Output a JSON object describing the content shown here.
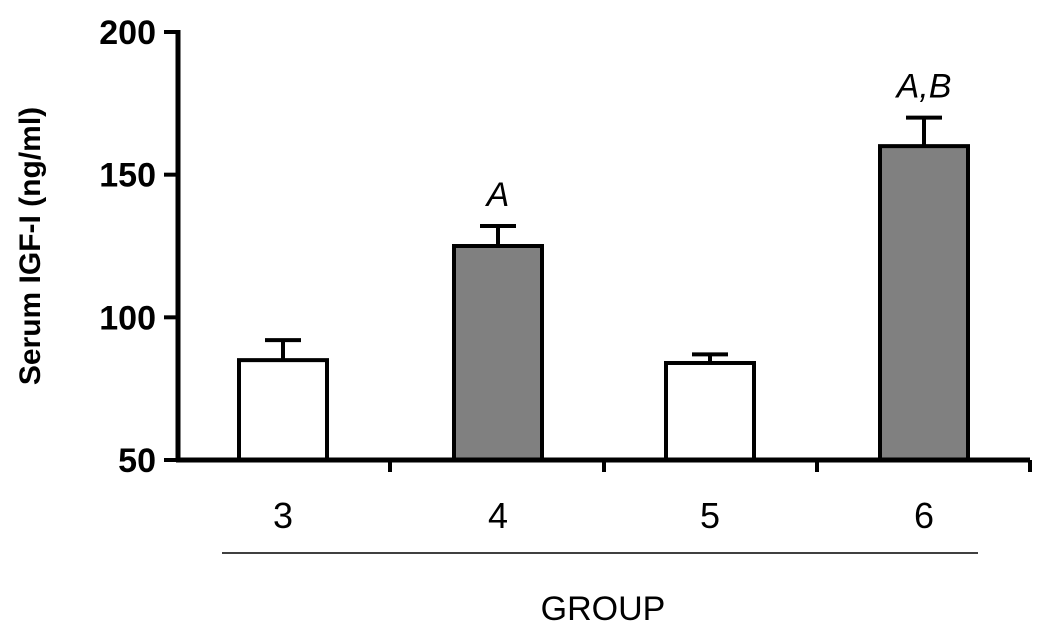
{
  "chart_data": {
    "type": "bar",
    "title": "",
    "ylabel": "Serum IGF-I (ng/ml)",
    "xlabel": "GROUP",
    "ylim": [
      50,
      200
    ],
    "yticks": [
      50,
      100,
      150,
      200
    ],
    "categories": [
      "3",
      "4",
      "5",
      "6"
    ],
    "values": [
      85,
      125,
      84,
      160
    ],
    "error": [
      7,
      7,
      3,
      10
    ],
    "fill_colors": [
      "#ffffff",
      "#808080",
      "#ffffff",
      "#808080"
    ],
    "annotations": [
      "",
      "A",
      "",
      "A,B"
    ],
    "grid": false
  },
  "colors": {
    "axis": "#000000",
    "open_bar": "#ffffff",
    "filled_bar": "#808080"
  }
}
